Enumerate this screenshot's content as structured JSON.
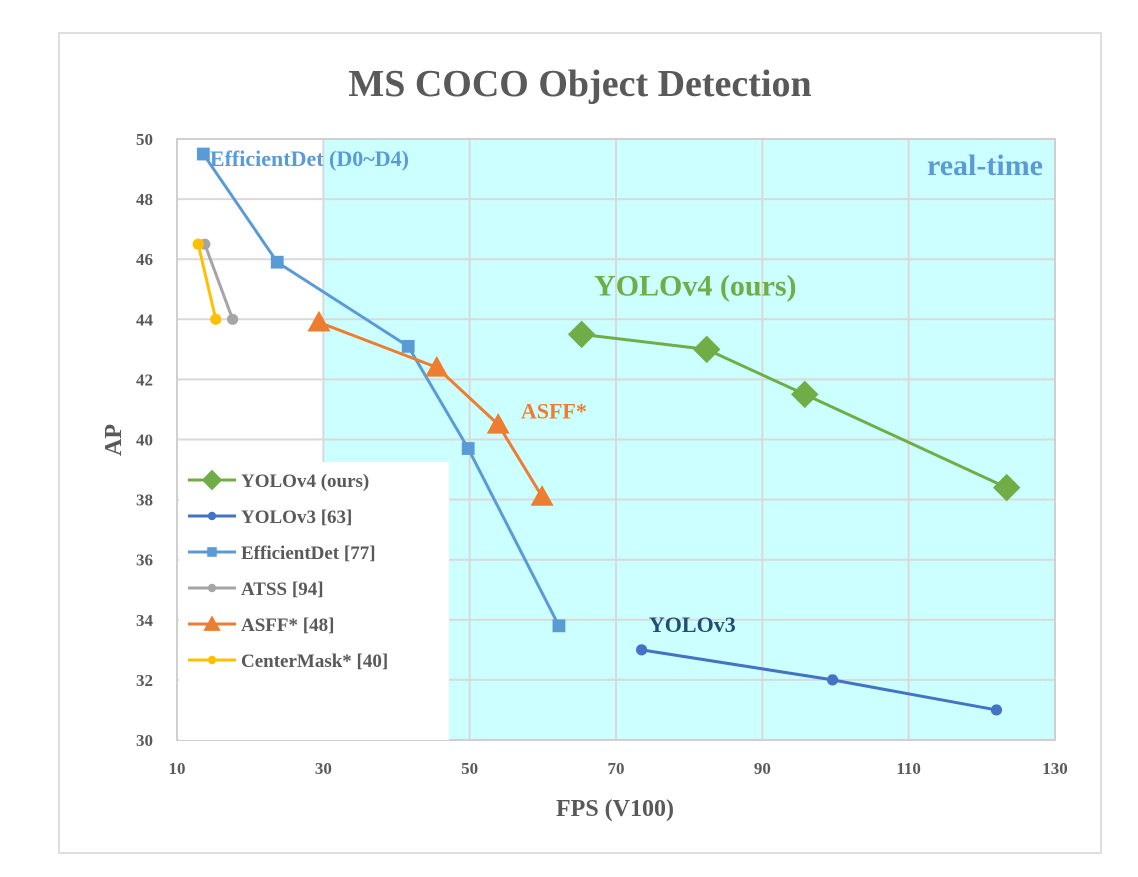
{
  "chart_data": {
    "type": "line",
    "title": "MS COCO Object Detection",
    "xlabel": "FPS (V100)",
    "ylabel": "AP",
    "xlim": [
      10,
      130
    ],
    "ylim": [
      30,
      50
    ],
    "xticks": [
      10,
      30,
      50,
      70,
      90,
      110,
      130
    ],
    "yticks": [
      30,
      32,
      34,
      36,
      38,
      40,
      42,
      44,
      46,
      48,
      50
    ],
    "grid": true,
    "legend_position": "bottom-left",
    "shaded_region": {
      "label": "real-time",
      "x_from": 30,
      "x_to": 130,
      "color": "#ccffff"
    },
    "series": [
      {
        "name": "YOLOv4 (ours)",
        "color": "#70ad47",
        "marker": "diamond",
        "x": [
          65.3,
          82.4,
          95.8,
          123.4
        ],
        "y": [
          43.5,
          43.0,
          41.5,
          38.4
        ]
      },
      {
        "name": "YOLOv3 [63]",
        "color": "#4472c4",
        "marker": "circle",
        "x": [
          73.5,
          99.6,
          122.0
        ],
        "y": [
          33.0,
          32.0,
          31.0
        ]
      },
      {
        "name": "EfficientDet [77]",
        "color": "#5b9bd5",
        "marker": "square",
        "x": [
          13.6,
          23.7,
          41.6,
          49.8,
          62.2
        ],
        "y": [
          49.5,
          45.9,
          43.1,
          39.7,
          33.8
        ]
      },
      {
        "name": "ATSS [94]",
        "color": "#a5a5a5",
        "marker": "circle",
        "x": [
          13.8,
          17.6
        ],
        "y": [
          46.5,
          44.0
        ]
      },
      {
        "name": "ASFF* [48]",
        "color": "#ed7d31",
        "marker": "triangle",
        "x": [
          29.4,
          45.5,
          53.9,
          59.9
        ],
        "y": [
          43.9,
          42.4,
          40.5,
          38.1
        ]
      },
      {
        "name": "CenterMask* [40]",
        "color": "#ffc000",
        "marker": "circle",
        "x": [
          12.9,
          15.3
        ],
        "y": [
          46.5,
          44.0
        ]
      }
    ],
    "annotations": [
      {
        "text": "EfficientDet (D0~D4)",
        "x": 14.5,
        "y": 49.1,
        "color": "#5b9bd5",
        "size": "medium"
      },
      {
        "text": "real-time",
        "x": 112.5,
        "y": 48.8,
        "color": "#5b9bd5",
        "size": "large"
      },
      {
        "text": "YOLOv4 (ours)",
        "x": 67,
        "y": 44.8,
        "color": "#70ad47",
        "size": "large"
      },
      {
        "text": "ASFF*",
        "x": 57,
        "y": 40.7,
        "color": "#ed7d31",
        "size": "medium"
      },
      {
        "text": "YOLOv3",
        "x": 74.5,
        "y": 33.6,
        "color": "#1f4e79",
        "size": "medium"
      }
    ]
  }
}
